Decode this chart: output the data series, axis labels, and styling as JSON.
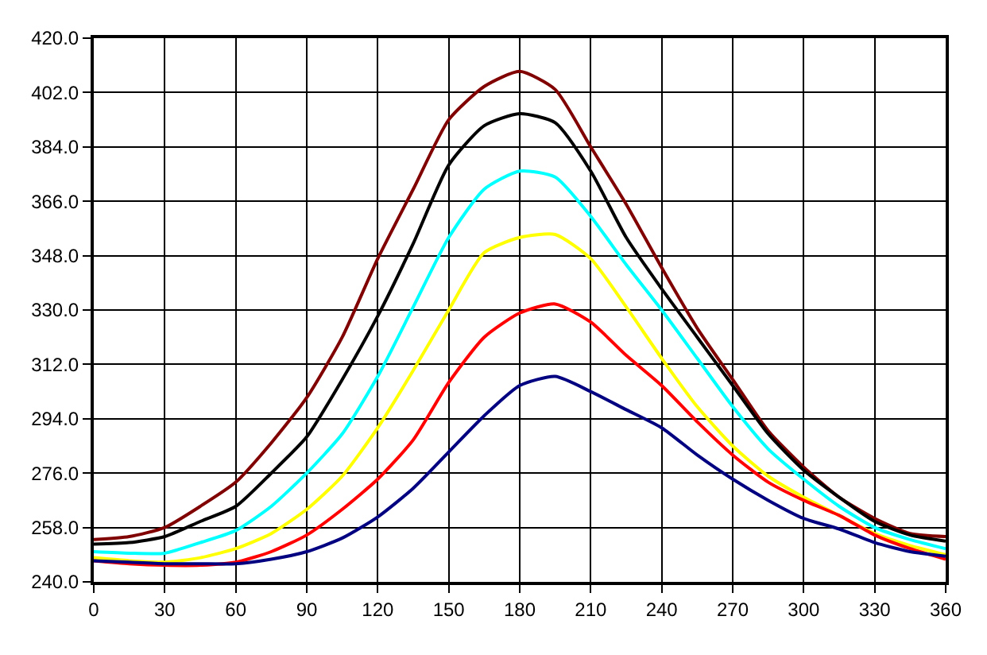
{
  "chart_data": {
    "type": "line",
    "x": [
      0,
      15,
      30,
      45,
      60,
      75,
      90,
      105,
      120,
      135,
      150,
      165,
      180,
      195,
      210,
      225,
      240,
      255,
      270,
      285,
      300,
      315,
      330,
      345,
      360
    ],
    "series": [
      {
        "color": "#800000",
        "values": [
          254,
          255,
          258,
          265,
          273,
          286,
          301,
          321,
          347,
          370,
          393,
          404,
          409,
          403,
          384,
          365,
          344,
          324,
          307,
          290,
          278,
          268,
          261,
          256,
          255
        ]
      },
      {
        "color": "#000000",
        "values": [
          252.5,
          253,
          255,
          260,
          265,
          276,
          288,
          307,
          328,
          352,
          378,
          391,
          395,
          392,
          376,
          354,
          337,
          321,
          305,
          289,
          277,
          268,
          260,
          255.5,
          253.5
        ]
      },
      {
        "color": "#00ffff",
        "values": [
          250,
          249.5,
          249.5,
          253,
          257,
          265,
          276,
          289,
          308,
          331,
          354,
          370,
          376,
          374,
          361,
          345,
          330,
          314,
          298,
          284,
          274,
          265,
          258,
          254,
          251
        ]
      },
      {
        "color": "#ffff00",
        "values": [
          248,
          247,
          246.5,
          248,
          251,
          256,
          264,
          275,
          291,
          310,
          330,
          349,
          354,
          355,
          347,
          331,
          314,
          298,
          285,
          275,
          268,
          262,
          256,
          252,
          249
        ]
      },
      {
        "color": "#ff0000",
        "values": [
          247,
          246,
          245.5,
          245.5,
          246.5,
          250,
          255.5,
          264,
          274,
          287,
          306,
          321,
          329,
          332,
          326,
          315,
          305,
          293,
          282,
          273,
          267,
          262,
          255.5,
          251,
          247.5
        ]
      },
      {
        "color": "#000080",
        "values": [
          247,
          246.5,
          246,
          246,
          246,
          247.5,
          250,
          254.5,
          261.5,
          271,
          283,
          295,
          305,
          308,
          303,
          297,
          291,
          282,
          274,
          267,
          261,
          257.5,
          253,
          250,
          248.5
        ]
      }
    ],
    "xlim": [
      0,
      360
    ],
    "xticks": [
      0,
      30,
      60,
      90,
      120,
      150,
      180,
      210,
      240,
      270,
      300,
      330,
      360
    ],
    "ylim": [
      240,
      420
    ],
    "yticks": [
      {
        "value": 240,
        "label": "240.0"
      },
      {
        "value": 258,
        "label": "258.0"
      },
      {
        "value": 276,
        "label": "276.0"
      },
      {
        "value": 294,
        "label": "294.0"
      },
      {
        "value": 312,
        "label": "312.0"
      },
      {
        "value": 330,
        "label": "330.0"
      },
      {
        "value": 348,
        "label": "348.0"
      },
      {
        "value": 366,
        "label": "366.0"
      },
      {
        "value": 384,
        "label": "384.0"
      },
      {
        "value": 402,
        "label": "402.0"
      },
      {
        "value": 420,
        "label": "420.0"
      }
    ],
    "grid": true,
    "marker": "none",
    "line_style": "solid"
  }
}
